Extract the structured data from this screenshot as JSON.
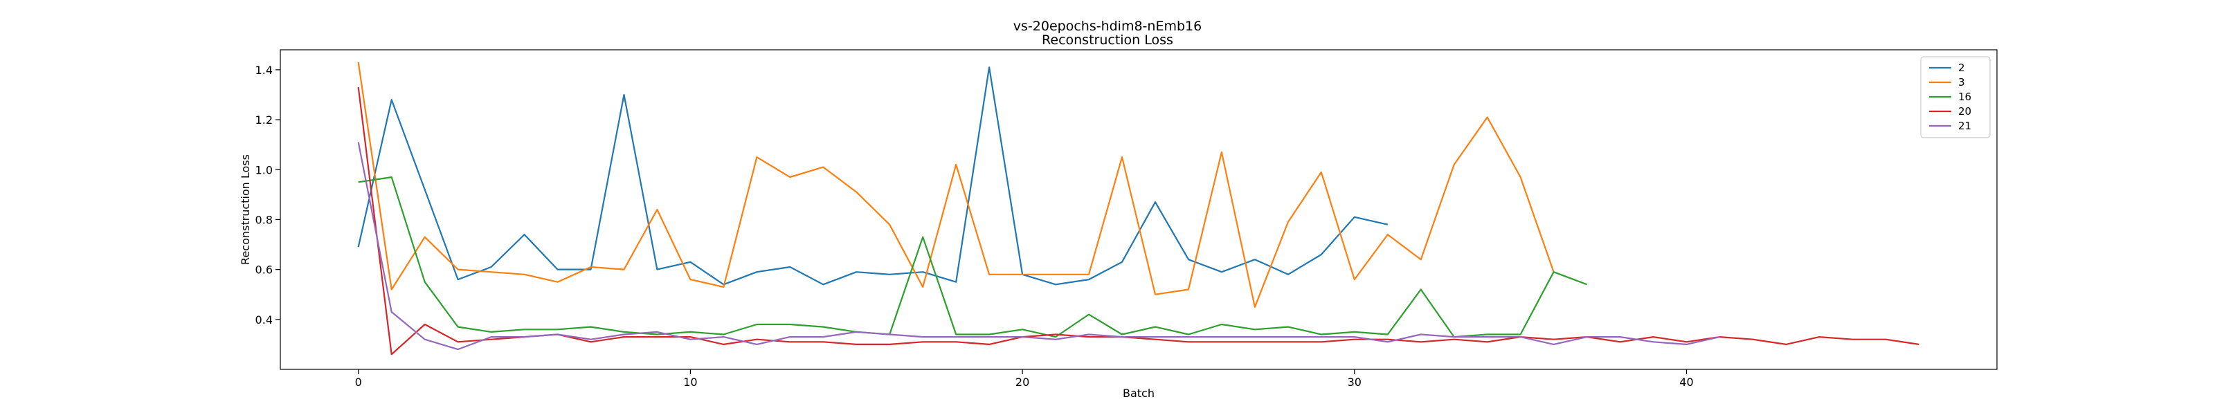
{
  "chart_data": {
    "type": "line",
    "title": "vs-20epochs-hdim8-nEmb16",
    "subtitle": "Reconstruction Loss",
    "xlabel": "Batch",
    "ylabel": "Reconstruction Loss",
    "xlim": [
      -2.35,
      49.35
    ],
    "ylim": [
      0.2,
      1.48
    ],
    "xticks": [
      0,
      10,
      20,
      30,
      40
    ],
    "yticks": [
      0.4,
      0.6,
      0.8,
      1.0,
      1.2,
      1.4
    ],
    "xtick_labels": [
      "0",
      "10",
      "20",
      "30",
      "40"
    ],
    "ytick_labels": [
      "0.4",
      "0.6",
      "0.8",
      "1.0",
      "1.2",
      "1.4"
    ],
    "grid": false,
    "legend_position": "top-right",
    "series": [
      {
        "name": "2",
        "color": "#1f77b4",
        "values": [
          0.69,
          1.28,
          0.92,
          0.56,
          0.61,
          0.74,
          0.6,
          0.6,
          1.3,
          0.6,
          0.63,
          0.54,
          0.59,
          0.61,
          0.54,
          0.59,
          0.58,
          0.59,
          0.55,
          1.41,
          0.58,
          0.54,
          0.56,
          0.63,
          0.87,
          0.64,
          0.59,
          0.64,
          0.58,
          0.66,
          0.81,
          0.78
        ]
      },
      {
        "name": "3",
        "color": "#ff7f0e",
        "values": [
          1.43,
          0.52,
          0.73,
          0.6,
          0.59,
          0.58,
          0.55,
          0.61,
          0.6,
          0.84,
          0.56,
          0.53,
          1.05,
          0.97,
          1.01,
          0.91,
          0.78,
          0.53,
          1.02,
          0.58,
          0.58,
          0.58,
          0.58,
          1.05,
          0.5,
          0.52,
          1.07,
          0.45,
          0.79,
          0.99,
          0.56,
          0.74,
          0.64,
          1.02,
          1.21,
          0.97,
          0.59
        ]
      },
      {
        "name": "16",
        "color": "#2ca02c",
        "values": [
          0.95,
          0.97,
          0.55,
          0.37,
          0.35,
          0.36,
          0.36,
          0.37,
          0.35,
          0.34,
          0.35,
          0.34,
          0.38,
          0.38,
          0.37,
          0.35,
          0.34,
          0.73,
          0.34,
          0.34,
          0.36,
          0.33,
          0.42,
          0.34,
          0.37,
          0.34,
          0.38,
          0.36,
          0.37,
          0.34,
          0.35,
          0.34,
          0.52,
          0.33,
          0.34,
          0.34,
          0.59,
          0.54
        ]
      },
      {
        "name": "20",
        "color": "#d62728",
        "values": [
          1.33,
          0.26,
          0.38,
          0.31,
          0.32,
          0.33,
          0.34,
          0.31,
          0.33,
          0.33,
          0.33,
          0.3,
          0.32,
          0.31,
          0.31,
          0.3,
          0.3,
          0.31,
          0.31,
          0.3,
          0.33,
          0.34,
          0.33,
          0.33,
          0.32,
          0.31,
          0.31,
          0.31,
          0.31,
          0.31,
          0.32,
          0.32,
          0.31,
          0.32,
          0.31,
          0.33,
          0.32,
          0.33,
          0.31,
          0.33,
          0.31,
          0.33,
          0.32,
          0.3,
          0.33,
          0.32,
          0.32,
          0.3
        ]
      },
      {
        "name": "21",
        "color": "#9467bd",
        "values": [
          1.11,
          0.43,
          0.32,
          0.28,
          0.33,
          0.33,
          0.34,
          0.32,
          0.34,
          0.35,
          0.32,
          0.33,
          0.3,
          0.33,
          0.33,
          0.35,
          0.34,
          0.33,
          0.33,
          0.33,
          0.33,
          0.32,
          0.34,
          0.33,
          0.33,
          0.33,
          0.33,
          0.33,
          0.33,
          0.33,
          0.33,
          0.31,
          0.34,
          0.33,
          0.33,
          0.33,
          0.3,
          0.33,
          0.33,
          0.31,
          0.3,
          0.33
        ]
      }
    ]
  }
}
